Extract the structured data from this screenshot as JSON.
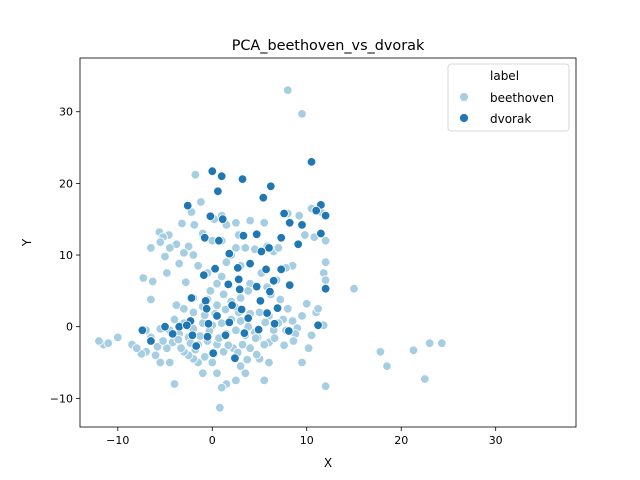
{
  "chart_data": {
    "type": "scatter",
    "title": "PCA_beethoven_vs_dvorak",
    "xlabel": "X",
    "ylabel": "Y",
    "xlim": [
      -14,
      38.5
    ],
    "ylim": [
      -14,
      37.5
    ],
    "xticks": [
      -10,
      0,
      10,
      20,
      30
    ],
    "yticks": [
      -10,
      0,
      10,
      20,
      30
    ],
    "grid": false,
    "legend": {
      "title": "label",
      "position": "top-right",
      "entries": [
        "beethoven",
        "dvorak"
      ]
    },
    "series": [
      {
        "name": "beethoven",
        "color": "#a6cee3",
        "points": [
          [
            8.0,
            33.0
          ],
          [
            9.5,
            29.7
          ],
          [
            -1.8,
            21.2
          ],
          [
            -1.2,
            17.4
          ],
          [
            -2.2,
            16.0
          ],
          [
            -1.9,
            14.2
          ],
          [
            -3.2,
            14.4
          ],
          [
            -5.6,
            13.2
          ],
          [
            -4.6,
            12.8
          ],
          [
            -5.2,
            12.5
          ],
          [
            -5.5,
            11.8
          ],
          [
            -3.8,
            11.5
          ],
          [
            -2.5,
            11.2
          ],
          [
            -6.5,
            11.0
          ],
          [
            -4.5,
            11.0
          ],
          [
            -5.0,
            9.8
          ],
          [
            -3.0,
            10.3
          ],
          [
            -2.0,
            10.0
          ],
          [
            -3.5,
            8.8
          ],
          [
            -4.8,
            7.5
          ],
          [
            -6.3,
            6.3
          ],
          [
            -7.3,
            6.8
          ],
          [
            -6.5,
            3.8
          ],
          [
            -3.8,
            3.0
          ],
          [
            -3.0,
            2.5
          ],
          [
            -2.0,
            2.0
          ],
          [
            -1.0,
            2.8
          ],
          [
            0.5,
            3.0
          ],
          [
            2.0,
            3.5
          ],
          [
            3.0,
            4.0
          ],
          [
            0.2,
            15.0
          ],
          [
            1.0,
            15.5
          ],
          [
            1.5,
            14.2
          ],
          [
            2.5,
            14.5
          ],
          [
            2.8,
            12.8
          ],
          [
            1.0,
            12.0
          ],
          [
            0.0,
            12.0
          ],
          [
            -1.0,
            13.0
          ],
          [
            2.5,
            11.0
          ],
          [
            3.5,
            11.0
          ],
          [
            4.0,
            14.8
          ],
          [
            5.5,
            14.5
          ],
          [
            4.5,
            10.8
          ],
          [
            5.8,
            11.2
          ],
          [
            6.5,
            10.5
          ],
          [
            7.0,
            11.0
          ],
          [
            7.5,
            15.8
          ],
          [
            8.0,
            15.8
          ],
          [
            9.2,
            15.5
          ],
          [
            9.8,
            12.8
          ],
          [
            10.8,
            12.5
          ],
          [
            11.5,
            16.0
          ],
          [
            12.0,
            9.0
          ],
          [
            11.8,
            7.5
          ],
          [
            12.0,
            6.5
          ],
          [
            15.0,
            5.3
          ],
          [
            11.0,
            2.0
          ],
          [
            10.0,
            3.2
          ],
          [
            9.5,
            1.5
          ],
          [
            8.0,
            2.5
          ],
          [
            7.5,
            1.0
          ],
          [
            7.8,
            -0.5
          ],
          [
            8.5,
            0.8
          ],
          [
            9.0,
            -0.2
          ],
          [
            10.5,
            -1.2
          ],
          [
            9.5,
            -5.0
          ],
          [
            12.0,
            -8.3
          ],
          [
            6.0,
            -2.2
          ],
          [
            5.0,
            -4.5
          ],
          [
            4.0,
            -3.0
          ],
          [
            3.0,
            -5.5
          ],
          [
            2.5,
            -7.5
          ],
          [
            1.5,
            -8.0
          ],
          [
            0.5,
            -6.5
          ],
          [
            0.0,
            -5.0
          ],
          [
            -1.0,
            -6.5
          ],
          [
            -1.5,
            -5.0
          ],
          [
            -2.0,
            -4.5
          ],
          [
            -2.5,
            -4.0
          ],
          [
            -3.0,
            -3.5
          ],
          [
            -4.0,
            -8.0
          ],
          [
            -4.5,
            -5.0
          ],
          [
            -5.5,
            -5.0
          ],
          [
            -6.0,
            -4.0
          ],
          [
            -7.0,
            -3.5
          ],
          [
            -7.5,
            -3.8
          ],
          [
            -8.5,
            -2.5
          ],
          [
            -8.0,
            -3.0
          ],
          [
            -10.0,
            -1.5
          ],
          [
            -11.5,
            -2.5
          ],
          [
            -12.0,
            -2.0
          ],
          [
            -11.0,
            -2.3
          ],
          [
            -7.0,
            -0.5
          ],
          [
            -5.5,
            -0.3
          ],
          [
            -4.5,
            -0.5
          ],
          [
            -3.5,
            -1.0
          ],
          [
            -2.5,
            -1.5
          ],
          [
            -1.5,
            -2.5
          ],
          [
            -0.5,
            -2.0
          ],
          [
            0.5,
            -2.5
          ],
          [
            1.5,
            -1.0
          ],
          [
            2.5,
            -0.5
          ],
          [
            3.5,
            -1.2
          ],
          [
            4.5,
            -0.8
          ],
          [
            5.5,
            -2.5
          ],
          [
            6.5,
            -0.5
          ],
          [
            7.0,
            0.5
          ],
          [
            6.0,
            1.5
          ],
          [
            5.0,
            2.0
          ],
          [
            4.0,
            1.8
          ],
          [
            3.0,
            0.8
          ],
          [
            2.0,
            1.0
          ],
          [
            1.0,
            0.5
          ],
          [
            0.0,
            0.2
          ],
          [
            -1.0,
            0.5
          ],
          [
            -2.0,
            -0.3
          ],
          [
            -3.0,
            0.5
          ],
          [
            -4.0,
            1.0
          ],
          [
            0.8,
            -11.3
          ],
          [
            1.0,
            -8.5
          ],
          [
            3.5,
            -6.5
          ],
          [
            5.5,
            -7.5
          ],
          [
            6.0,
            -5.0
          ],
          [
            4.8,
            -1.5
          ],
          [
            3.2,
            -2.5
          ],
          [
            2.2,
            -3.0
          ],
          [
            1.2,
            -3.5
          ],
          [
            0.2,
            -3.8
          ],
          [
            -0.8,
            -4.2
          ],
          [
            -1.8,
            -3.2
          ],
          [
            17.8,
            -3.5
          ],
          [
            18.5,
            -5.5
          ],
          [
            21.3,
            -3.3
          ],
          [
            23.0,
            -2.3
          ],
          [
            24.3,
            -2.3
          ],
          [
            22.5,
            -7.3
          ],
          [
            10.2,
            -3.0
          ],
          [
            8.8,
            -1.0
          ],
          [
            7.2,
            3.8
          ],
          [
            5.8,
            5.5
          ],
          [
            6.8,
            6.5
          ],
          [
            5.2,
            7.5
          ],
          [
            4.0,
            6.0
          ],
          [
            3.0,
            8.5
          ],
          [
            2.0,
            10.0
          ],
          [
            1.5,
            9.0
          ],
          [
            1.0,
            7.0
          ],
          [
            0.5,
            6.0
          ],
          [
            -0.5,
            7.5
          ],
          [
            -1.5,
            8.5
          ],
          [
            -2.8,
            6.2
          ],
          [
            -2.0,
            4.0
          ],
          [
            -0.5,
            3.8
          ],
          [
            1.2,
            4.5
          ],
          [
            2.8,
            2.0
          ],
          [
            3.8,
            0.0
          ],
          [
            4.6,
            -1.6
          ],
          [
            5.6,
            0.6
          ],
          [
            6.6,
            -1.6
          ],
          [
            7.6,
            -2.6
          ],
          [
            8.6,
            -2.0
          ],
          [
            -6.5,
            -1.5
          ],
          [
            -5.8,
            -2.8
          ],
          [
            -4.2,
            -2.2
          ],
          [
            -3.3,
            -3.0
          ],
          [
            -2.3,
            -2.3
          ],
          [
            -1.3,
            -1.3
          ],
          [
            -0.3,
            -0.6
          ],
          [
            0.7,
            -1.6
          ],
          [
            1.7,
            -2.6
          ],
          [
            2.7,
            -3.6
          ],
          [
            3.7,
            -4.6
          ],
          [
            4.7,
            -3.9
          ],
          [
            -0.8,
            1.6
          ],
          [
            0.3,
            1.8
          ],
          [
            1.4,
            2.4
          ],
          [
            2.4,
            2.8
          ],
          [
            -3.6,
            -1.8
          ],
          [
            -4.8,
            -3.0
          ],
          [
            -5.2,
            -2.0
          ],
          [
            11.2,
            2.5
          ],
          [
            11.8,
            0.2
          ],
          [
            12.0,
            12.0
          ],
          [
            10.5,
            16.5
          ],
          [
            8.5,
            8.5
          ],
          [
            7.8,
            8.2
          ],
          [
            6.2,
            4.5
          ],
          [
            3.8,
            5.0
          ],
          [
            1.8,
            5.8
          ],
          [
            -0.2,
            5.0
          ]
        ]
      },
      {
        "name": "dvorak",
        "color": "#1f78b4",
        "points": [
          [
            10.5,
            23.0
          ],
          [
            0.0,
            21.7
          ],
          [
            1.0,
            21.0
          ],
          [
            3.2,
            20.6
          ],
          [
            6.2,
            19.6
          ],
          [
            0.6,
            18.9
          ],
          [
            5.4,
            18.0
          ],
          [
            -2.6,
            16.9
          ],
          [
            11.5,
            17.0
          ],
          [
            11.0,
            16.2
          ],
          [
            12.0,
            15.5
          ],
          [
            7.6,
            15.8
          ],
          [
            -0.2,
            15.4
          ],
          [
            1.1,
            15.0
          ],
          [
            8.2,
            14.5
          ],
          [
            9.5,
            14.2
          ],
          [
            -0.8,
            12.4
          ],
          [
            0.7,
            12.0
          ],
          [
            3.3,
            12.7
          ],
          [
            4.7,
            12.9
          ],
          [
            7.3,
            12.4
          ],
          [
            11.5,
            13.0
          ],
          [
            9.1,
            11.5
          ],
          [
            6.0,
            11.0
          ],
          [
            1.8,
            10.2
          ],
          [
            5.2,
            10.5
          ],
          [
            -0.9,
            7.2
          ],
          [
            0.3,
            8.1
          ],
          [
            2.7,
            8.2
          ],
          [
            4.0,
            8.8
          ],
          [
            5.7,
            8.0
          ],
          [
            6.5,
            6.4
          ],
          [
            7.3,
            8.0
          ],
          [
            8.2,
            5.8
          ],
          [
            12.0,
            5.3
          ],
          [
            2.8,
            6.6
          ],
          [
            1.7,
            5.9
          ],
          [
            2.9,
            5.2
          ],
          [
            4.7,
            5.6
          ],
          [
            6.1,
            4.9
          ],
          [
            -2.2,
            4.0
          ],
          [
            -0.7,
            3.6
          ],
          [
            2.1,
            3.0
          ],
          [
            3.1,
            2.4
          ],
          [
            5.1,
            3.6
          ],
          [
            6.9,
            2.6
          ],
          [
            0.5,
            1.5
          ],
          [
            1.8,
            0.6
          ],
          [
            3.8,
            1.2
          ],
          [
            5.8,
            1.9
          ],
          [
            -0.4,
            0.4
          ],
          [
            -2.3,
            0.8
          ],
          [
            -3.5,
            0.0
          ],
          [
            -5.0,
            0.0
          ],
          [
            -7.4,
            -0.5
          ],
          [
            -6.5,
            -2.0
          ],
          [
            -4.2,
            -1.0
          ],
          [
            -2.1,
            -1.2
          ],
          [
            -0.5,
            -1.4
          ],
          [
            1.4,
            -1.2
          ],
          [
            3.4,
            -0.9
          ],
          [
            4.9,
            -0.4
          ],
          [
            6.6,
            0.4
          ],
          [
            8.1,
            -0.6
          ],
          [
            11.2,
            0.2
          ],
          [
            2.4,
            -4.4
          ],
          [
            0.1,
            -3.7
          ],
          [
            -1.7,
            -2.7
          ],
          [
            -2.7,
            0.2
          ],
          [
            -0.6,
            2.5
          ]
        ]
      }
    ]
  }
}
